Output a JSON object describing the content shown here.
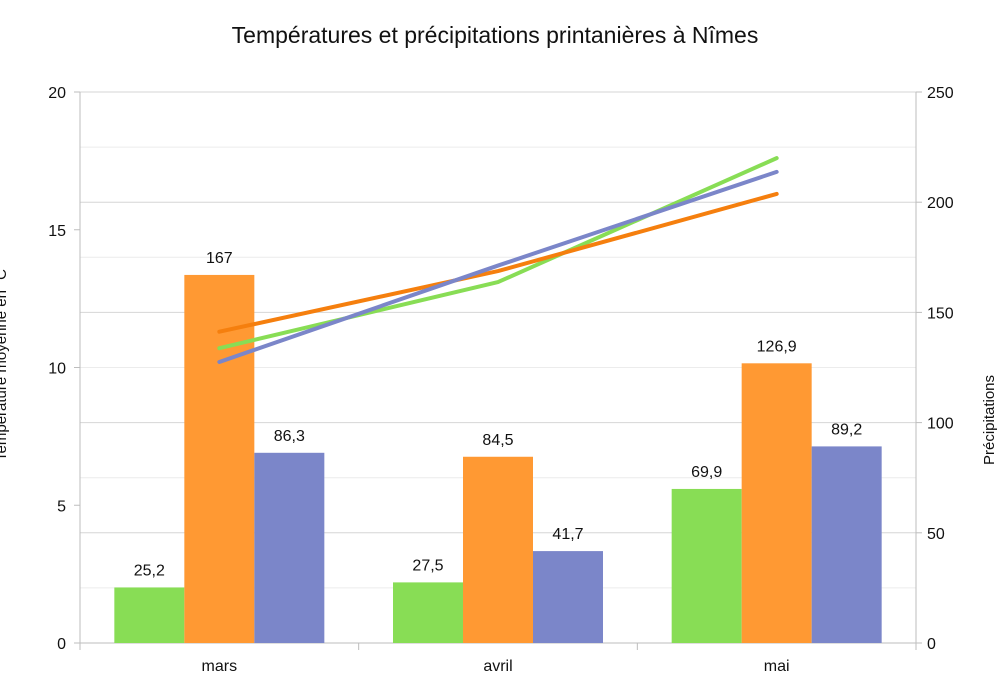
{
  "chart_data": {
    "type": "bar",
    "title": "Températures et précipitations printanières à Nîmes",
    "categories": [
      "mars",
      "avril",
      "mai"
    ],
    "ylabel_left": "Température moyenne en °C",
    "ylabel_right": "Précipitations",
    "ylim_left": [
      0,
      20
    ],
    "ylim_right": [
      0,
      250
    ],
    "yticks_left": [
      0,
      5,
      10,
      15,
      20
    ],
    "yticks_right": [
      0,
      50,
      100,
      150,
      200,
      250
    ],
    "grid": true,
    "bar_series": [
      {
        "values": [
          25.2,
          27.5,
          69.9
        ],
        "labels": [
          "25,2",
          "27,5",
          "69,9"
        ],
        "color": "#88DD55",
        "axis": "right"
      },
      {
        "values": [
          167,
          84.5,
          126.9
        ],
        "labels": [
          "167",
          "84,5",
          "126,9"
        ],
        "color": "#FF9933",
        "axis": "right"
      },
      {
        "values": [
          86.3,
          41.7,
          89.2
        ],
        "labels": [
          "86,3",
          "41,7",
          "89,2"
        ],
        "color": "#7B86C9",
        "axis": "right"
      }
    ],
    "line_series": [
      {
        "values": [
          10.7,
          13.1,
          17.6
        ],
        "color": "#88DD55",
        "axis": "left"
      },
      {
        "values": [
          11.3,
          13.5,
          16.3
        ],
        "color": "#F57F0E",
        "axis": "left"
      },
      {
        "values": [
          10.2,
          13.7,
          17.1
        ],
        "color": "#7B86C9",
        "axis": "left"
      }
    ]
  }
}
